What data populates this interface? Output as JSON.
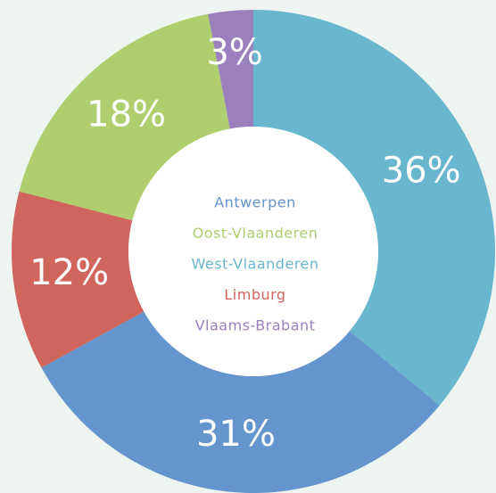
{
  "chart_data": {
    "type": "donut",
    "categories": [
      "Antwerpen",
      "Oost-Vlaanderen",
      "West-Vlaanderen",
      "Limburg",
      "Vlaams-Brabant"
    ],
    "values": [
      31,
      18,
      36,
      12,
      3
    ],
    "value_labels": [
      "31%",
      "18%",
      "36%",
      "12%",
      "3%"
    ],
    "colors": [
      "#6495cc",
      "#afcf6e",
      "#69b6cf",
      "#d0655e",
      "#9a80bd"
    ],
    "legend": "center"
  }
}
